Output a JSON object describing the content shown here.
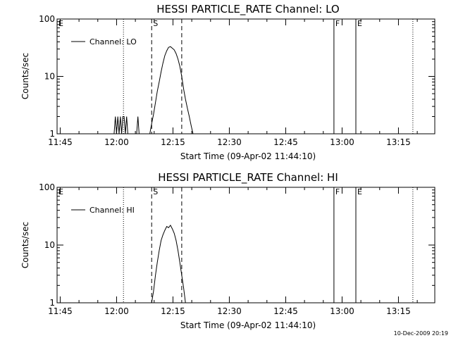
{
  "footer_timestamp": "10-Dec-2009 20:19",
  "colors": {
    "line": "#000000",
    "background": "#ffffff"
  },
  "chart_data": [
    {
      "type": "line",
      "title": "HESSI PARTICLE_RATE Channel: LO",
      "xlabel": "Start Time (09-Apr-02 11:44:10)",
      "ylabel": "Counts/sec",
      "yscale": "log",
      "ylim": [
        1,
        100
      ],
      "xlim": [
        "11:44:10",
        "13:24:40"
      ],
      "x_ticks": [
        "11:45",
        "12:00",
        "12:15",
        "12:30",
        "12:45",
        "13:00",
        "13:15"
      ],
      "y_ticks": [
        "1",
        "10",
        "100"
      ],
      "legend": {
        "position": "top-left",
        "entries": [
          "Channel: LO"
        ]
      },
      "grid": false,
      "markers": [
        {
          "label": "E",
          "time": "11:44:10",
          "style": "dotted"
        },
        {
          "time": "12:01:50",
          "style": "dotted"
        },
        {
          "label": "S",
          "time": "12:09:20",
          "style": "dashed"
        },
        {
          "time": "12:17:20",
          "style": "dashed"
        },
        {
          "label": "F",
          "time": "12:57:50",
          "style": "solid"
        },
        {
          "label": "E",
          "time": "13:03:40",
          "style": "solid"
        },
        {
          "time": "13:18:50",
          "style": "dotted"
        }
      ],
      "series": [
        {
          "name": "Channel: LO",
          "x": [
            "11:59:20",
            "11:59:40",
            "12:00:00",
            "12:00:20",
            "12:00:40",
            "12:01:00",
            "12:01:20",
            "12:01:40",
            "12:02:00",
            "12:02:20",
            "12:02:40",
            "12:03:00",
            "12:05:20",
            "12:05:40",
            "12:06:00",
            "12:08:50",
            "12:09:20",
            "12:09:50",
            "12:10:20",
            "12:10:50",
            "12:11:20",
            "12:11:50",
            "12:12:20",
            "12:12:50",
            "12:13:20",
            "12:13:50",
            "12:14:20",
            "12:14:50",
            "12:15:20",
            "12:15:50",
            "12:16:20",
            "12:16:50",
            "12:17:20",
            "12:17:50",
            "12:18:20",
            "12:18:50",
            "12:19:20",
            "12:19:50",
            "12:20:20"
          ],
          "y": [
            1,
            2,
            1,
            2,
            1,
            2,
            1,
            2,
            2,
            1,
            2,
            1,
            1,
            2,
            1,
            1,
            1.5,
            2.2,
            3.5,
            5.5,
            8,
            12,
            17,
            23,
            28,
            32,
            33,
            31,
            29,
            25,
            20,
            15,
            10,
            6,
            4,
            2.8,
            2,
            1.4,
            1
          ]
        }
      ]
    },
    {
      "type": "line",
      "title": "HESSI PARTICLE_RATE Channel: HI",
      "xlabel": "Start Time (09-Apr-02 11:44:10)",
      "ylabel": "Counts/sec",
      "yscale": "log",
      "ylim": [
        1,
        100
      ],
      "xlim": [
        "11:44:10",
        "13:24:40"
      ],
      "x_ticks": [
        "11:45",
        "12:00",
        "12:15",
        "12:30",
        "12:45",
        "13:00",
        "13:15"
      ],
      "y_ticks": [
        "1",
        "10",
        "100"
      ],
      "legend": {
        "position": "top-left",
        "entries": [
          "Channel: HI"
        ]
      },
      "grid": false,
      "markers": [
        {
          "label": "E",
          "time": "11:44:10",
          "style": "dotted"
        },
        {
          "time": "12:01:50",
          "style": "dotted"
        },
        {
          "label": "S",
          "time": "12:09:20",
          "style": "dashed"
        },
        {
          "time": "12:17:20",
          "style": "dashed"
        },
        {
          "label": "F",
          "time": "12:57:50",
          "style": "solid"
        },
        {
          "label": "E",
          "time": "13:03:40",
          "style": "solid"
        },
        {
          "time": "13:18:50",
          "style": "dotted"
        }
      ],
      "series": [
        {
          "name": "Channel: HI",
          "x": [
            "12:09:20",
            "12:09:50",
            "12:10:20",
            "12:10:50",
            "12:11:20",
            "12:11:50",
            "12:12:20",
            "12:12:50",
            "12:13:20",
            "12:13:50",
            "12:14:20",
            "12:14:50",
            "12:15:20",
            "12:15:50",
            "12:16:20",
            "12:16:50",
            "12:17:20",
            "12:17:50",
            "12:18:20"
          ],
          "y": [
            1,
            1.6,
            3,
            5,
            8,
            12,
            15,
            18,
            21,
            20,
            22,
            19,
            16,
            12,
            8,
            5,
            3,
            1.8,
            1
          ]
        }
      ]
    }
  ]
}
